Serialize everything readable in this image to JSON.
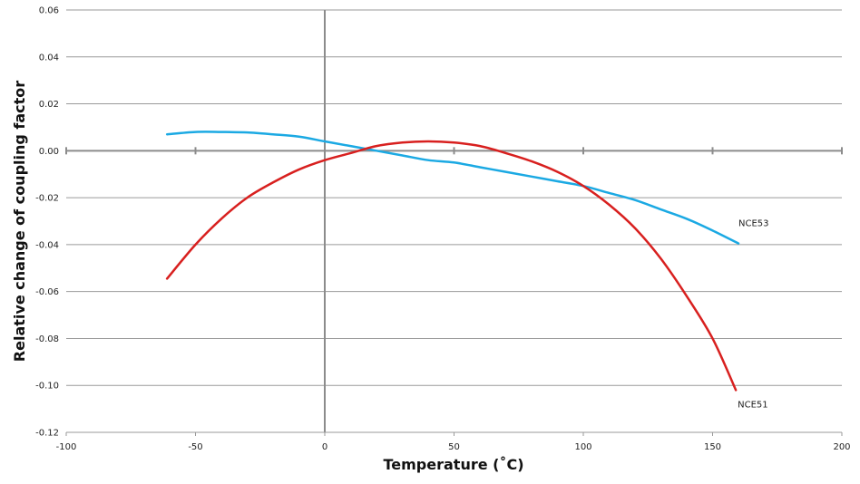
{
  "chart_data": {
    "type": "line",
    "title": "",
    "xlabel": "Temperature (˚C)",
    "ylabel": "Relative change of coupling factor",
    "xlim": [
      -100,
      200
    ],
    "ylim": [
      -0.12,
      0.06
    ],
    "x_ticks": [
      -100,
      -50,
      0,
      50,
      100,
      150,
      200
    ],
    "x_tick_labels": [
      "-100",
      "-50",
      "0",
      "50",
      "100",
      "150",
      "200"
    ],
    "y_ticks": [
      0.06,
      0.04,
      0.02,
      0.0,
      -0.02,
      -0.04,
      -0.06,
      -0.08,
      -0.1,
      -0.12
    ],
    "y_tick_labels": [
      "0.06",
      "0.04",
      "0.02",
      "0.00",
      "-0.02",
      "-0.04",
      "-0.06",
      "-0.08",
      "-0.10",
      "-0.12"
    ],
    "grid": "horizontal",
    "legend": "inline labels at series ends",
    "series": [
      {
        "name": "NCE53",
        "color": "#1ba9e3",
        "x": [
          -61,
          -50,
          -40,
          -30,
          -20,
          -10,
          0,
          10,
          20,
          30,
          40,
          50,
          60,
          70,
          80,
          90,
          100,
          110,
          120,
          130,
          140,
          150,
          160
        ],
        "y": [
          0.007,
          0.008,
          0.008,
          0.0078,
          0.007,
          0.006,
          0.004,
          0.002,
          0.0,
          -0.002,
          -0.004,
          -0.005,
          -0.007,
          -0.009,
          -0.011,
          -0.013,
          -0.015,
          -0.018,
          -0.021,
          -0.025,
          -0.029,
          -0.034,
          -0.0395
        ]
      },
      {
        "name": "NCE51",
        "color": "#d8201f",
        "x": [
          -61,
          -50,
          -40,
          -30,
          -20,
          -10,
          0,
          10,
          20,
          30,
          40,
          50,
          60,
          70,
          80,
          90,
          100,
          110,
          120,
          130,
          140,
          150,
          159
        ],
        "y": [
          -0.0545,
          -0.04,
          -0.029,
          -0.02,
          -0.0135,
          -0.008,
          -0.004,
          -0.001,
          0.002,
          0.0035,
          0.004,
          0.0035,
          0.002,
          -0.001,
          -0.0045,
          -0.009,
          -0.015,
          -0.023,
          -0.033,
          -0.046,
          -0.062,
          -0.08,
          -0.102
        ]
      }
    ]
  }
}
